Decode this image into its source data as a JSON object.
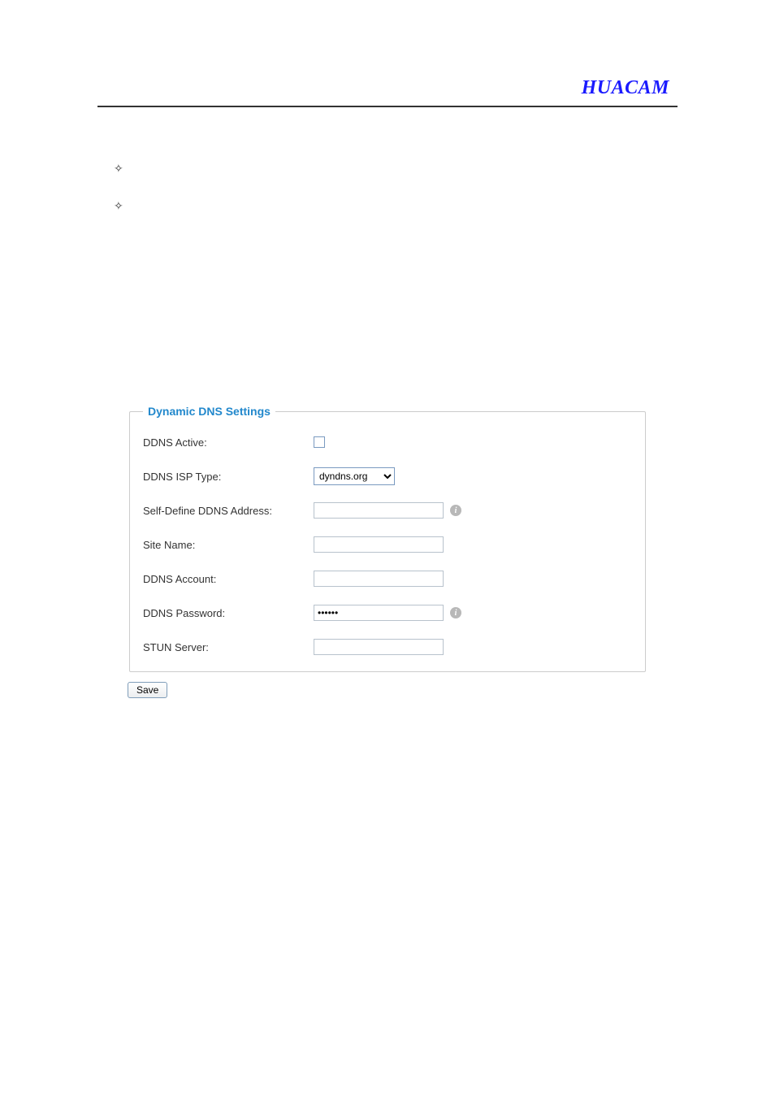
{
  "brand": "HUACAM",
  "bullets": [
    "",
    ""
  ],
  "ddns": {
    "legend": "Dynamic DNS Settings",
    "rows": {
      "active": {
        "label": "DDNS Active:",
        "checked": false
      },
      "isp_type": {
        "label": "DDNS ISP Type:",
        "selected": "dyndns.org",
        "options": [
          "dyndns.org"
        ]
      },
      "self_define": {
        "label": "Self-Define DDNS Address:",
        "value": "",
        "has_info": true
      },
      "site_name": {
        "label": "Site Name:",
        "value": ""
      },
      "account": {
        "label": "DDNS Account:",
        "value": ""
      },
      "password": {
        "label": "DDNS Password:",
        "value": "••••••",
        "has_info": true
      },
      "stun": {
        "label": "STUN Server:",
        "value": ""
      }
    }
  },
  "save_button_label": "Save",
  "colors": {
    "brand": "#1a1aff",
    "legend": "#2288cc",
    "border": "#cccccc",
    "input_border": "#b8c2cc",
    "text": "#333333"
  }
}
